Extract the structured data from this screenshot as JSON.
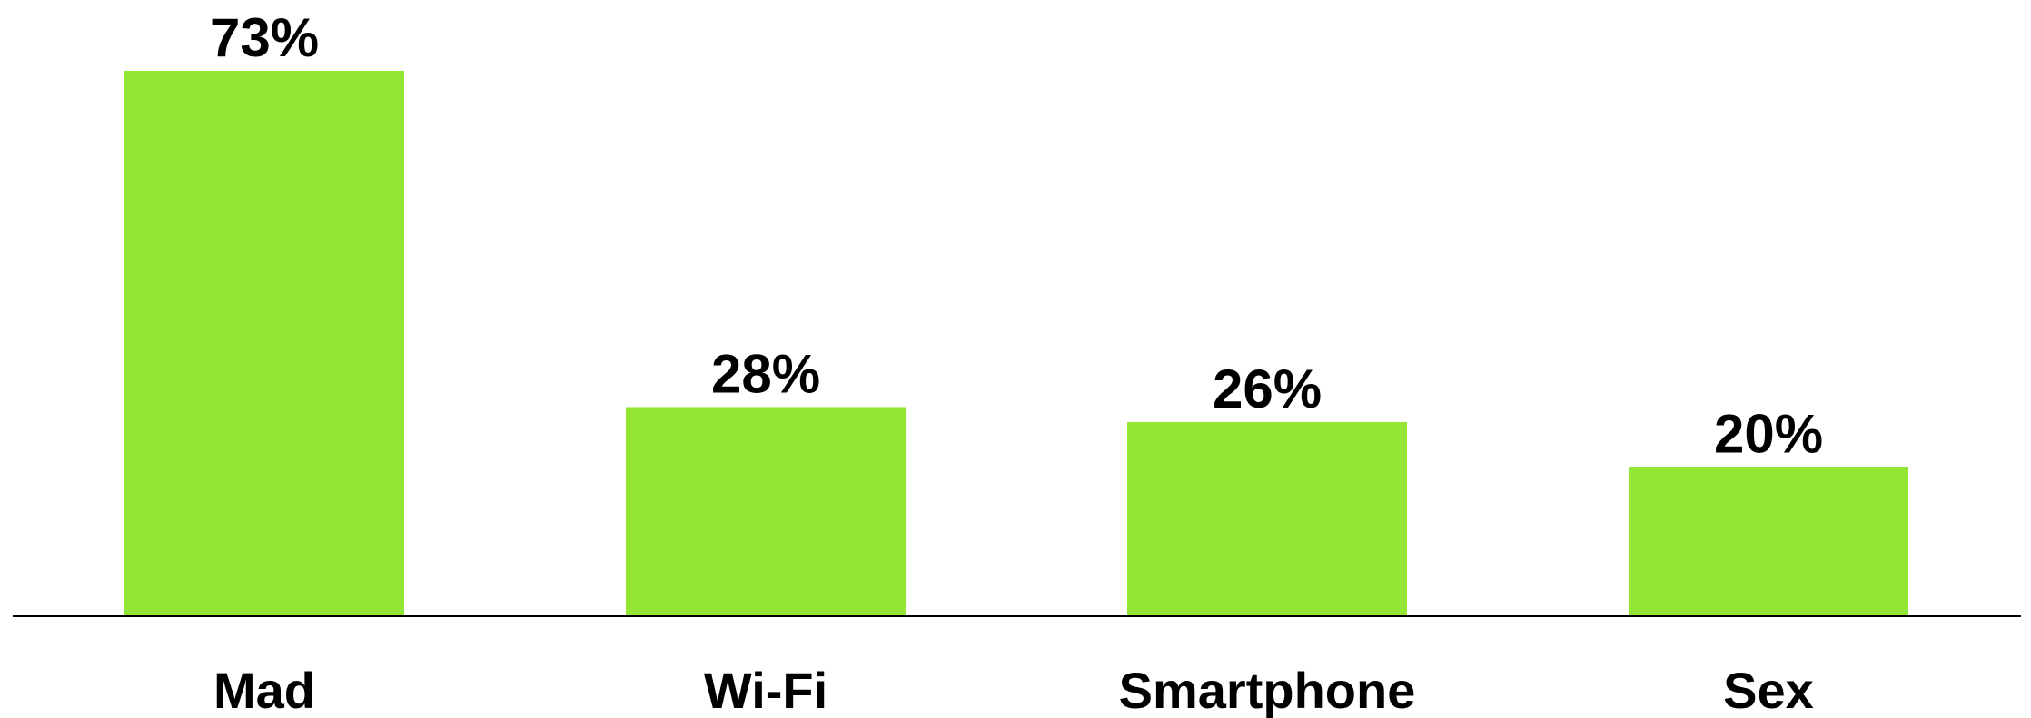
{
  "chart_data": {
    "type": "bar",
    "categories": [
      "Mad",
      "Wi-Fi",
      "Smartphone",
      "Sex"
    ],
    "values": [
      73,
      28,
      26,
      20
    ],
    "value_labels": [
      "73%",
      "28%",
      "26%",
      "20%"
    ],
    "color": "#93e634"
  }
}
